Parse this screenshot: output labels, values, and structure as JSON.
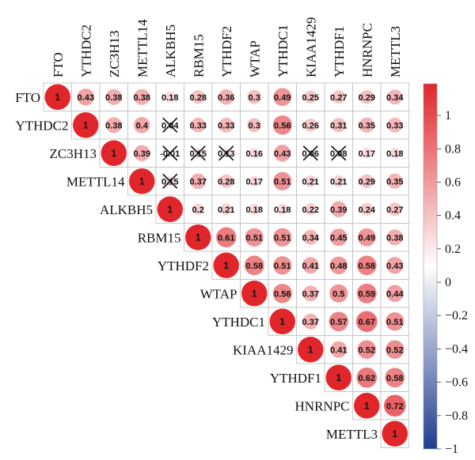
{
  "chart_data": {
    "type": "heatmap",
    "subtype": "correlation-upper-triangle-circles",
    "variables": [
      "FTO",
      "YTHDC2",
      "ZC3H13",
      "METTL14",
      "ALKBH5",
      "RBM15",
      "YTHDF2",
      "WTAP",
      "YTHDC1",
      "KIAA1429",
      "YTHDF1",
      "HNRNPC",
      "METTL3"
    ],
    "matrix": [
      [
        1,
        0.43,
        0.38,
        0.38,
        0.18,
        0.28,
        0.36,
        0.3,
        0.49,
        0.25,
        0.27,
        0.29,
        0.34
      ],
      [
        null,
        1,
        0.38,
        0.4,
        0.04,
        0.33,
        0.33,
        0.3,
        0.56,
        0.26,
        0.31,
        0.35,
        0.33
      ],
      [
        null,
        null,
        1,
        0.39,
        -0.01,
        0.15,
        0.13,
        0.16,
        0.43,
        0.06,
        0.08,
        0.17,
        0.18
      ],
      [
        null,
        null,
        null,
        1,
        0.15,
        0.37,
        0.28,
        0.17,
        0.51,
        0.21,
        0.21,
        0.29,
        0.35
      ],
      [
        null,
        null,
        null,
        null,
        1,
        0.2,
        0.21,
        0.18,
        0.18,
        0.22,
        0.39,
        0.24,
        0.27
      ],
      [
        null,
        null,
        null,
        null,
        null,
        1,
        0.61,
        0.51,
        0.51,
        0.34,
        0.45,
        0.49,
        0.38
      ],
      [
        null,
        null,
        null,
        null,
        null,
        null,
        1,
        0.58,
        0.51,
        0.41,
        0.48,
        0.58,
        0.43
      ],
      [
        null,
        null,
        null,
        null,
        null,
        null,
        null,
        1,
        0.56,
        0.37,
        0.5,
        0.59,
        0.44
      ],
      [
        null,
        null,
        null,
        null,
        null,
        null,
        null,
        null,
        1,
        0.37,
        0.57,
        0.67,
        0.51
      ],
      [
        null,
        null,
        null,
        null,
        null,
        null,
        null,
        null,
        null,
        1,
        0.41,
        0.52,
        0.52
      ],
      [
        null,
        null,
        null,
        null,
        null,
        null,
        null,
        null,
        null,
        null,
        1,
        0.62,
        0.58
      ],
      [
        null,
        null,
        null,
        null,
        null,
        null,
        null,
        null,
        null,
        null,
        null,
        1,
        0.72
      ],
      [
        null,
        null,
        null,
        null,
        null,
        null,
        null,
        null,
        null,
        null,
        null,
        null,
        1
      ]
    ],
    "value_labels": [
      [
        "1",
        "0.43",
        "0.38",
        "0.38",
        "0.18",
        "0.28",
        "0.36",
        "0.3",
        "0.49",
        "0.25",
        "0.27",
        "0.29",
        "0.34"
      ],
      [
        null,
        "1",
        "0.38",
        "0.4",
        "0.04",
        "0.33",
        "0.33",
        "0.3",
        "0.56",
        "0.26",
        "0.31",
        "0.35",
        "0.33"
      ],
      [
        null,
        null,
        "1",
        "0.39",
        "-0.01",
        "0.15",
        "0.13",
        "0.16",
        "0.43",
        "0.06",
        "0.08",
        "0.17",
        "0.18"
      ],
      [
        null,
        null,
        null,
        "1",
        "0.15",
        "0.37",
        "0.28",
        "0.17",
        "0.51",
        "0.21",
        "0.21",
        "0.29",
        "0.35"
      ],
      [
        null,
        null,
        null,
        null,
        "1",
        "0.2",
        "0.21",
        "0.18",
        "0.18",
        "0.22",
        "0.39",
        "0.24",
        "0.27"
      ],
      [
        null,
        null,
        null,
        null,
        null,
        "1",
        "0.61",
        "0.51",
        "0.51",
        "0.34",
        "0.45",
        "0.49",
        "0.38"
      ],
      [
        null,
        null,
        null,
        null,
        null,
        null,
        "1",
        "0.58",
        "0.51",
        "0.41",
        "0.48",
        "0.58",
        "0.43"
      ],
      [
        null,
        null,
        null,
        null,
        null,
        null,
        null,
        "1",
        "0.56",
        "0.37",
        "0.5",
        "0.59",
        "0.44"
      ],
      [
        null,
        null,
        null,
        null,
        null,
        null,
        null,
        null,
        "1",
        "0.37",
        "0.57",
        "0.67",
        "0.51"
      ],
      [
        null,
        null,
        null,
        null,
        null,
        null,
        null,
        null,
        null,
        "1",
        "0.41",
        "0.52",
        "0.52"
      ],
      [
        null,
        null,
        null,
        null,
        null,
        null,
        null,
        null,
        null,
        null,
        "1",
        "0.62",
        "0.58"
      ],
      [
        null,
        null,
        null,
        null,
        null,
        null,
        null,
        null,
        null,
        null,
        null,
        "1",
        "0.72"
      ],
      [
        null,
        null,
        null,
        null,
        null,
        null,
        null,
        null,
        null,
        null,
        null,
        null,
        "1"
      ]
    ],
    "insignificant_marked": [
      [
        1,
        4
      ],
      [
        2,
        4
      ],
      [
        2,
        5
      ],
      [
        2,
        6
      ],
      [
        2,
        9
      ],
      [
        2,
        10
      ],
      [
        3,
        4
      ]
    ],
    "colorbar": {
      "range": [
        -1,
        1
      ],
      "ticks": [
        1,
        0.8,
        0.6,
        0.4,
        0.2,
        0,
        -0.2,
        -0.4,
        -0.6,
        -0.8,
        -1
      ],
      "tick_labels": [
        "1",
        "0.8",
        "0.6",
        "0.4",
        "0.2",
        "0",
        "−0.2",
        "−0.4",
        "−0.6",
        "−0.8",
        "−1"
      ],
      "colors": {
        "negative": "#1f3d8f",
        "neutral": "#ffffff",
        "positive": "#e0262a"
      }
    },
    "title": "",
    "legend_position": "right"
  }
}
